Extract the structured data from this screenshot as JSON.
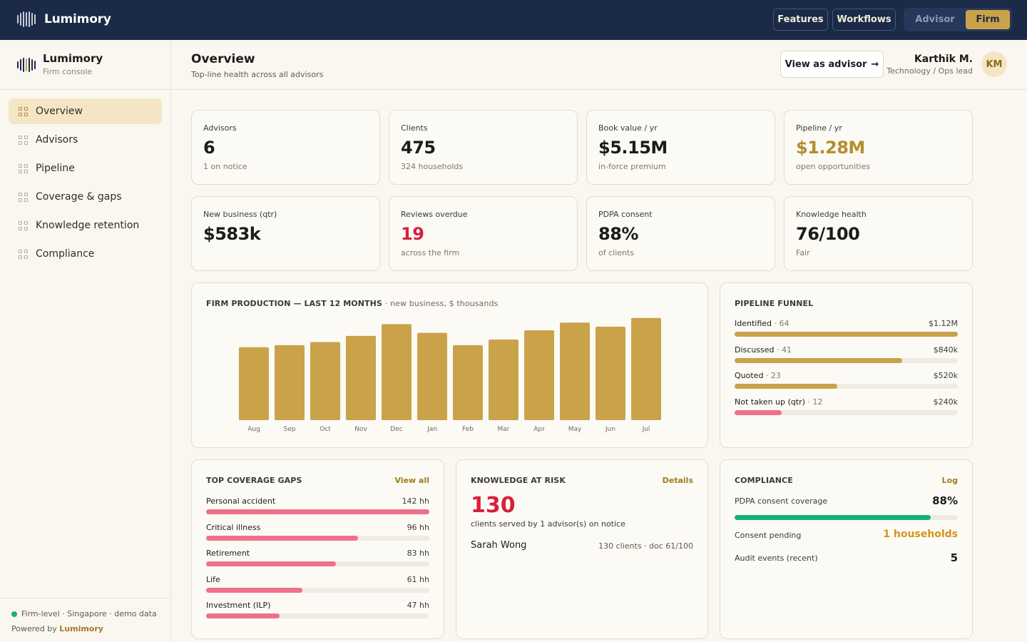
{
  "topbar": {
    "brand": "Lumimory",
    "features": "Features",
    "workflows": "Workflows",
    "mode_advisor": "Advisor",
    "mode_firm": "Firm"
  },
  "sidebar": {
    "title": "Lumimory",
    "subtitle": "Firm console",
    "items": [
      {
        "label": "Overview",
        "active": true
      },
      {
        "label": "Advisors"
      },
      {
        "label": "Pipeline"
      },
      {
        "label": "Coverage & gaps"
      },
      {
        "label": "Knowledge retention"
      },
      {
        "label": "Compliance"
      }
    ],
    "footer_status": "Firm-level · Singapore · demo data",
    "footer_powered": "Powered by",
    "footer_brand": "Lumimory"
  },
  "header": {
    "title": "Overview",
    "subtitle": "Top-line health across all advisors",
    "view_button": "View as advisor",
    "view_arrow": "→",
    "user_name": "Karthik M.",
    "user_role": "Technology / Ops lead",
    "avatar": "KM"
  },
  "kpis": [
    {
      "label": "Advisors",
      "value": "6",
      "sub": "1 on notice",
      "color": "#1c1c1c"
    },
    {
      "label": "Clients",
      "value": "475",
      "sub": "324 households",
      "color": "#1c1c1c"
    },
    {
      "label": "Book value / yr",
      "value": "$5.15M",
      "sub": "in-force premium",
      "color": "#1c1c1c"
    },
    {
      "label": "Pipeline / yr",
      "value": "$1.28M",
      "sub": "open opportunities",
      "color": "#b48e2e"
    },
    {
      "label": "New business (qtr)",
      "value": "$583k",
      "sub": "",
      "color": "#1c1c1c"
    },
    {
      "label": "Reviews overdue",
      "value": "19",
      "sub": "across the firm",
      "color": "#d81f3c"
    },
    {
      "label": "PDPA consent",
      "value": "88%",
      "sub": "of clients",
      "color": "#1c1c1c"
    },
    {
      "label": "Knowledge health",
      "value": "76/100",
      "sub": "Fair",
      "color": "#1c1c1c"
    }
  ],
  "production": {
    "title": "FIRM PRODUCTION — LAST 12 MONTHS",
    "subtitle": "· new business, $ thousands"
  },
  "chart_data": {
    "type": "bar",
    "categories": [
      "Aug",
      "Sep",
      "Oct",
      "Nov",
      "Dec",
      "Jan",
      "Feb",
      "Mar",
      "Apr",
      "May",
      "Jun",
      "Jul"
    ],
    "values": [
      142,
      146,
      152,
      164,
      187,
      170,
      146,
      157,
      175,
      190,
      182,
      199
    ],
    "ylim": [
      0,
      200
    ],
    "grid": false,
    "color": "#c9a24a"
  },
  "funnel": {
    "title": "PIPELINE FUNNEL",
    "rows": [
      {
        "label": "Identified",
        "count": "· 64",
        "value": "$1.12M",
        "fraction": 1.0,
        "color": "#c9a24a"
      },
      {
        "label": "Discussed",
        "count": "· 41",
        "value": "$840k",
        "fraction": 0.75,
        "color": "#c9a24a"
      },
      {
        "label": "Quoted",
        "count": "· 23",
        "value": "$520k",
        "fraction": 0.46,
        "color": "#c9a24a"
      },
      {
        "label": "Not taken up (qtr)",
        "count": "· 12",
        "value": "$240k",
        "fraction": 0.21,
        "color": "#f0708a"
      }
    ]
  },
  "gaps": {
    "title": "TOP COVERAGE GAPS",
    "link": "View all",
    "rows": [
      {
        "label": "Personal accident",
        "value": "142 hh",
        "fraction": 1.0
      },
      {
        "label": "Critical illness",
        "value": "96 hh",
        "fraction": 0.68
      },
      {
        "label": "Retirement",
        "value": "83 hh",
        "fraction": 0.58
      },
      {
        "label": "Life",
        "value": "61 hh",
        "fraction": 0.43
      },
      {
        "label": "Investment (ILP)",
        "value": "47 hh",
        "fraction": 0.33
      }
    ],
    "color": "#f0708a"
  },
  "risk": {
    "title": "KNOWLEDGE AT RISK",
    "link": "Details",
    "value": "130",
    "sub": "clients served by 1 advisor(s) on notice",
    "name": "Sarah Wong",
    "meta": "130 clients · doc 61/100"
  },
  "compliance": {
    "title": "COMPLIANCE",
    "link": "Log",
    "consent_label": "PDPA consent coverage",
    "consent_value": "88%",
    "consent_fraction": 0.88,
    "pending_label": "Consent pending",
    "pending_value": "1 households",
    "audit_label": "Audit events (recent)",
    "audit_value": "5"
  }
}
